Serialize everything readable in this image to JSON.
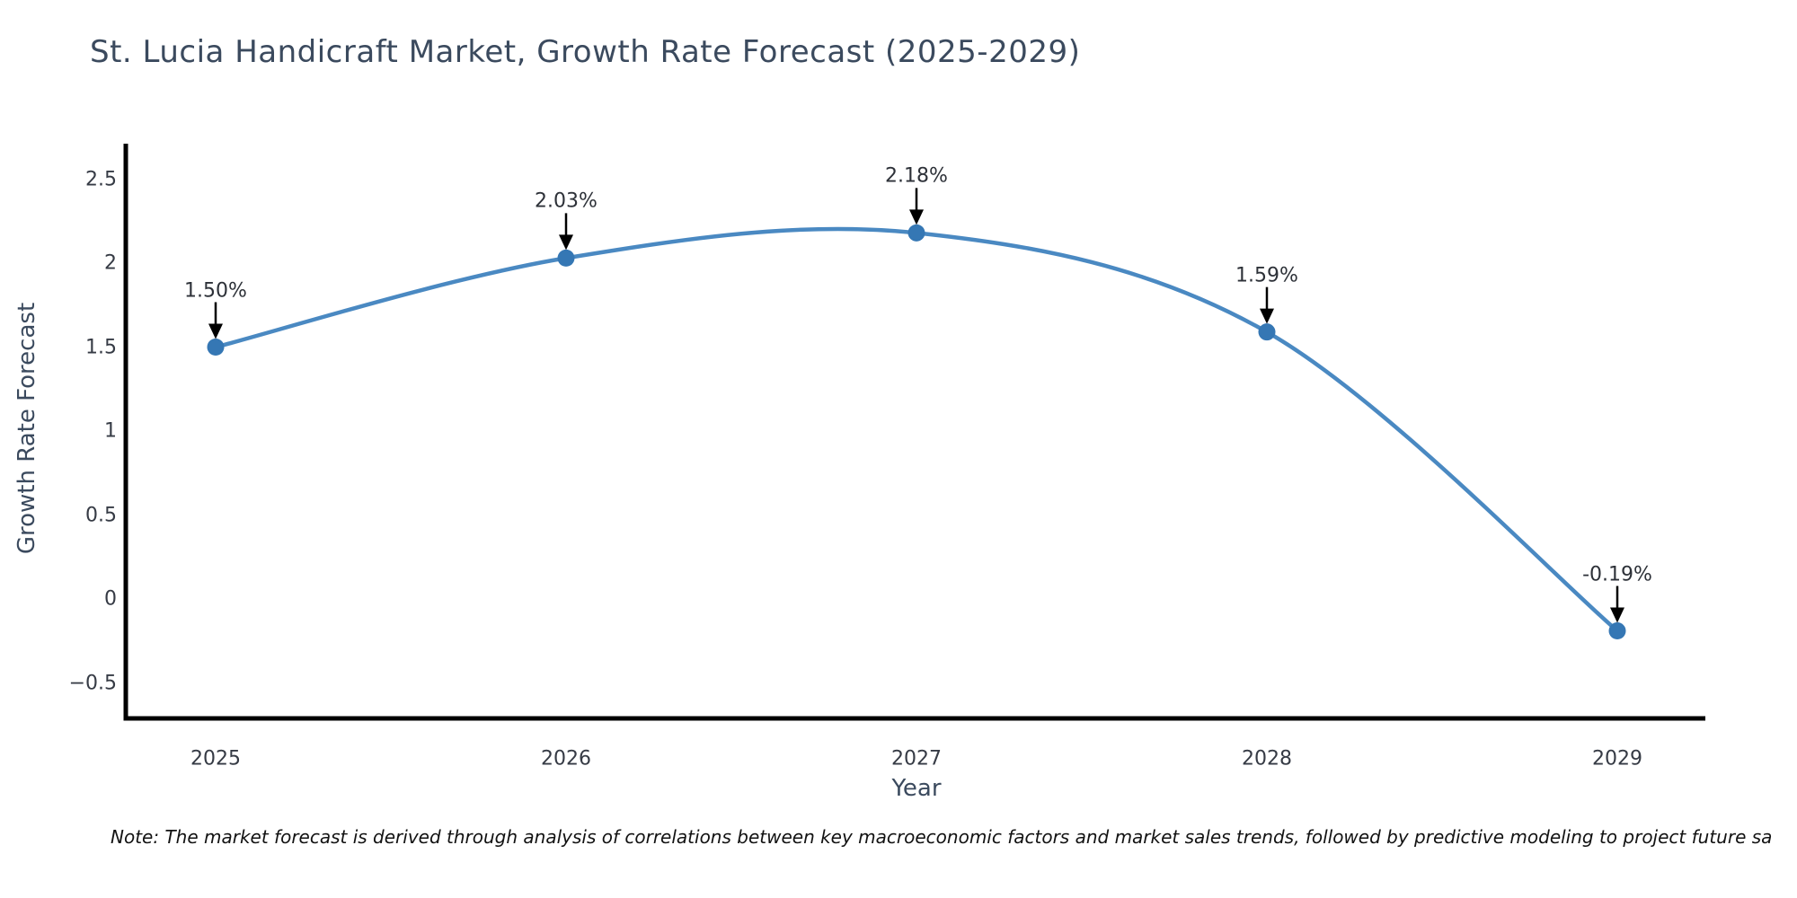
{
  "title": "St. Lucia Handicraft Market, Growth Rate Forecast (2025-2029)",
  "note": "Note: The market forecast is derived through analysis of correlations between key macroeconomic factors and market sales trends, followed by predictive modeling to project future sa",
  "colors": {
    "line": "#4a89c2",
    "marker": "#3577b4",
    "axis": "#000000",
    "arrow": "#000000",
    "title_text": "#3b4a5e",
    "tick_text": "#363b45",
    "annotation_text": "#2d3138"
  },
  "chart_data": {
    "type": "line",
    "title": "St. Lucia Handicraft Market, Growth Rate Forecast (2025-2029)",
    "xlabel": "Year",
    "ylabel": "Growth Rate Forecast",
    "categories": [
      "2025",
      "2026",
      "2027",
      "2028",
      "2029"
    ],
    "values": [
      1.5,
      2.03,
      2.18,
      1.59,
      -0.19
    ],
    "point_labels": [
      "1.50%",
      "2.03%",
      "2.18%",
      "1.59%",
      "-0.19%"
    ],
    "yticks": [
      {
        "label": "2.5",
        "value": 2.5
      },
      {
        "label": "2",
        "value": 2.0
      },
      {
        "label": "1.5",
        "value": 1.5
      },
      {
        "label": "1",
        "value": 1.0
      },
      {
        "label": "0.5",
        "value": 0.5
      },
      {
        "label": "0",
        "value": 0.0
      },
      {
        "label": "−0.5",
        "value": -0.5
      }
    ],
    "ylim": [
      -0.71,
      2.71
    ],
    "grid": false,
    "legend": null,
    "marker_style": "circle",
    "annotation_arrow": "down-arrow"
  }
}
